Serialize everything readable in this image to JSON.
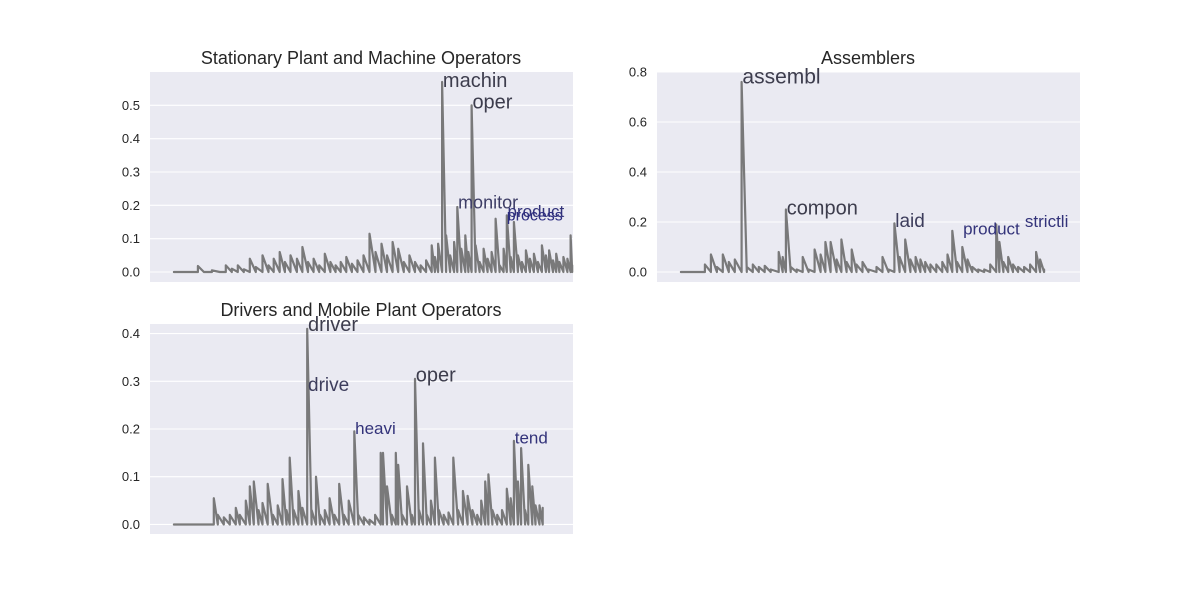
{
  "chart_data": [
    {
      "type": "line",
      "title": "Stationary Plant and Machine Operators",
      "xlabel": "",
      "ylabel": "",
      "ylim": [
        -0.03,
        0.6
      ],
      "yticks": [
        0.0,
        0.1,
        0.2,
        0.3,
        0.4,
        0.5
      ],
      "ytick_labels": [
        "0.0",
        "0.1",
        "0.2",
        "0.3",
        "0.4",
        "0.5"
      ],
      "xlim": [
        -60,
        1000
      ],
      "grid": true,
      "series": [
        {
          "color": "#737373",
          "values": [
            [
              0,
              0
            ],
            [
              40,
              0
            ],
            [
              60,
              0.018
            ],
            [
              75,
              0
            ],
            [
              95,
              0.005
            ],
            [
              115,
              0
            ],
            [
              130,
              0.02
            ],
            [
              145,
              0.01
            ],
            [
              160,
              0.02
            ],
            [
              175,
              0.008
            ],
            [
              190,
              0.04
            ],
            [
              205,
              0.015
            ],
            [
              222,
              0.05
            ],
            [
              237,
              0.02
            ],
            [
              250,
              0.04
            ],
            [
              265,
              0.06
            ],
            [
              278,
              0.03
            ],
            [
              292,
              0.05
            ],
            [
              308,
              0.04
            ],
            [
              322,
              0.075
            ],
            [
              336,
              0.03
            ],
            [
              350,
              0.04
            ],
            [
              364,
              0.02
            ],
            [
              378,
              0.055
            ],
            [
              392,
              0.03
            ],
            [
              405,
              0.02
            ],
            [
              418,
              0.03
            ],
            [
              432,
              0.045
            ],
            [
              446,
              0.025
            ],
            [
              460,
              0.035
            ],
            [
              475,
              0.05
            ],
            [
              490,
              0.115
            ],
            [
              505,
              0.06
            ],
            [
              520,
              0.085
            ],
            [
              534,
              0.05
            ],
            [
              548,
              0.09
            ],
            [
              562,
              0.07
            ],
            [
              576,
              0.03
            ],
            [
              590,
              0.05
            ],
            [
              604,
              0.03
            ],
            [
              618,
              0.02
            ],
            [
              632,
              0.035
            ],
            [
              646,
              0.08
            ],
            [
              654,
              0.045
            ],
            [
              662,
              0.085
            ],
            [
              672,
              0.57
            ],
            [
              682,
              0.11
            ],
            [
              692,
              0.05
            ],
            [
              702,
              0.09
            ],
            [
              710,
              0.195
            ],
            [
              720,
              0.07
            ],
            [
              730,
              0.11
            ],
            [
              738,
              0.06
            ],
            [
              746,
              0.5
            ],
            [
              756,
              0.08
            ],
            [
              766,
              0.03
            ],
            [
              776,
              0.07
            ],
            [
              786,
              0.04
            ],
            [
              796,
              0.06
            ],
            [
              806,
              0.16
            ],
            [
              816,
              0.02
            ],
            [
              826,
              0.07
            ],
            [
              834,
              0.17
            ],
            [
              844,
              0.045
            ],
            [
              852,
              0.15
            ],
            [
              862,
              0.05
            ],
            [
              872,
              0.03
            ],
            [
              882,
              0.065
            ],
            [
              892,
              0.04
            ],
            [
              902,
              0.055
            ],
            [
              912,
              0.03
            ],
            [
              922,
              0.08
            ],
            [
              932,
              0.05
            ],
            [
              940,
              0.065
            ],
            [
              950,
              0.035
            ],
            [
              958,
              0.055
            ],
            [
              966,
              0.03
            ],
            [
              976,
              0.045
            ],
            [
              986,
              0.04
            ],
            [
              994,
              0.11
            ],
            [
              998,
              0.02
            ]
          ]
        }
      ],
      "annotations": [
        {
          "text": "machin",
          "x": 674,
          "y": 0.555,
          "size": 20,
          "color": "#3d3d4d"
        },
        {
          "text": "oper",
          "x": 748,
          "y": 0.49,
          "size": 20,
          "color": "#3d3d4d"
        },
        {
          "text": "monitor",
          "x": 712,
          "y": 0.19,
          "size": 18,
          "color": "#3d3d66"
        },
        {
          "text": "product",
          "x": 836,
          "y": 0.165,
          "size": 17,
          "color": "#33337a"
        },
        {
          "text": "process",
          "x": 834,
          "y": 0.155,
          "size": 16,
          "color": "#2d2d80"
        }
      ]
    },
    {
      "type": "line",
      "title": "Assemblers",
      "xlabel": "",
      "ylabel": "",
      "ylim": [
        -0.04,
        0.8
      ],
      "yticks": [
        0.0,
        0.2,
        0.4,
        0.6,
        0.8
      ],
      "ytick_labels": [
        "0.0",
        "0.2",
        "0.4",
        "0.6",
        "0.8"
      ],
      "xlim": [
        -60,
        1000
      ],
      "grid": true,
      "series": [
        {
          "color": "#737373",
          "values": [
            [
              0,
              0
            ],
            [
              40,
              0
            ],
            [
              60,
              0.03
            ],
            [
              75,
              0.07
            ],
            [
              90,
              0.02
            ],
            [
              105,
              0.07
            ],
            [
              120,
              0.04
            ],
            [
              135,
              0.05
            ],
            [
              152,
              0.76
            ],
            [
              165,
              0.02
            ],
            [
              180,
              0.03
            ],
            [
              195,
              0.02
            ],
            [
              210,
              0.025
            ],
            [
              225,
              0.01
            ],
            [
              245,
              0.08
            ],
            [
              255,
              0.06
            ],
            [
              263,
              0.25
            ],
            [
              275,
              0.02
            ],
            [
              290,
              0.01
            ],
            [
              305,
              0.06
            ],
            [
              320,
              0.01
            ],
            [
              335,
              0.09
            ],
            [
              350,
              0.07
            ],
            [
              362,
              0.12
            ],
            [
              375,
              0.12
            ],
            [
              390,
              0.05
            ],
            [
              402,
              0.13
            ],
            [
              415,
              0.04
            ],
            [
              428,
              0.09
            ],
            [
              440,
              0.03
            ],
            [
              455,
              0.04
            ],
            [
              470,
              0.01
            ],
            [
              490,
              0.02
            ],
            [
              505,
              0.06
            ],
            [
              520,
              0.01
            ],
            [
              535,
              0.195
            ],
            [
              548,
              0.06
            ],
            [
              562,
              0.13
            ],
            [
              575,
              0.05
            ],
            [
              588,
              0.06
            ],
            [
              600,
              0.05
            ],
            [
              612,
              0.04
            ],
            [
              625,
              0.03
            ],
            [
              640,
              0.03
            ],
            [
              655,
              0.04
            ],
            [
              668,
              0.07
            ],
            [
              680,
              0.165
            ],
            [
              692,
              0.04
            ],
            [
              705,
              0.1
            ],
            [
              718,
              0.05
            ],
            [
              730,
              0.02
            ],
            [
              745,
              0.01
            ],
            [
              760,
              0.01
            ],
            [
              775,
              0.03
            ],
            [
              790,
              0.19
            ],
            [
              798,
              0.12
            ],
            [
              808,
              0.04
            ],
            [
              820,
              0.06
            ],
            [
              832,
              0.03
            ],
            [
              845,
              0.02
            ],
            [
              860,
              0.02
            ],
            [
              875,
              0.03
            ],
            [
              890,
              0.08
            ],
            [
              900,
              0.05
            ],
            [
              910,
              0.01
            ]
          ]
        }
      ],
      "annotations": [
        {
          "text": "assembl",
          "x": 154,
          "y": 0.755,
          "size": 21,
          "color": "#3d3d4d"
        },
        {
          "text": "compon",
          "x": 265,
          "y": 0.23,
          "size": 20,
          "color": "#3d3d4d"
        },
        {
          "text": "laid",
          "x": 537,
          "y": 0.18,
          "size": 19,
          "color": "#3d3d5c"
        },
        {
          "text": "product",
          "x": 707,
          "y": 0.15,
          "size": 17,
          "color": "#33337a"
        },
        {
          "text": "strictli",
          "x": 862,
          "y": 0.18,
          "size": 17,
          "color": "#33337a"
        }
      ]
    },
    {
      "type": "line",
      "title": "Drivers and Mobile Plant Operators",
      "xlabel": "",
      "ylabel": "",
      "ylim": [
        -0.02,
        0.42
      ],
      "yticks": [
        0.0,
        0.1,
        0.2,
        0.3,
        0.4
      ],
      "ytick_labels": [
        "0.0",
        "0.1",
        "0.2",
        "0.3",
        "0.4"
      ],
      "xlim": [
        -60,
        1000
      ],
      "grid": true,
      "series": [
        {
          "color": "#737373",
          "values": [
            [
              0,
              0
            ],
            [
              90,
              0
            ],
            [
              100,
              0.055
            ],
            [
              110,
              0.02
            ],
            [
              125,
              0.015
            ],
            [
              140,
              0.02
            ],
            [
              155,
              0.035
            ],
            [
              165,
              0.02
            ],
            [
              180,
              0.05
            ],
            [
              190,
              0.08
            ],
            [
              200,
              0.09
            ],
            [
              212,
              0.03
            ],
            [
              222,
              0.045
            ],
            [
              235,
              0.085
            ],
            [
              248,
              0.02
            ],
            [
              260,
              0.04
            ],
            [
              272,
              0.095
            ],
            [
              282,
              0.03
            ],
            [
              290,
              0.14
            ],
            [
              300,
              0.03
            ],
            [
              312,
              0.07
            ],
            [
              322,
              0.035
            ],
            [
              334,
              0.41
            ],
            [
              345,
              0.03
            ],
            [
              356,
              0.1
            ],
            [
              366,
              0.02
            ],
            [
              378,
              0.03
            ],
            [
              390,
              0.055
            ],
            [
              402,
              0.02
            ],
            [
              414,
              0.085
            ],
            [
              426,
              0.02
            ],
            [
              438,
              0.05
            ],
            [
              452,
              0.195
            ],
            [
              462,
              0.02
            ],
            [
              476,
              0.015
            ],
            [
              490,
              0.01
            ],
            [
              504,
              0.02
            ],
            [
              518,
              0.15
            ],
            [
              524,
              0.15
            ],
            [
              534,
              0.08
            ],
            [
              546,
              0.02
            ],
            [
              556,
              0.15
            ],
            [
              562,
              0.125
            ],
            [
              572,
              0.02
            ],
            [
              584,
              0.08
            ],
            [
              596,
              0.02
            ],
            [
              604,
              0.305
            ],
            [
              614,
              0.03
            ],
            [
              624,
              0.17
            ],
            [
              634,
              0.02
            ],
            [
              644,
              0.05
            ],
            [
              654,
              0.14
            ],
            [
              664,
              0.03
            ],
            [
              676,
              0.02
            ],
            [
              688,
              0.025
            ],
            [
              700,
              0.14
            ],
            [
              712,
              0.03
            ],
            [
              724,
              0.07
            ],
            [
              736,
              0.06
            ],
            [
              748,
              0.03
            ],
            [
              760,
              0.02
            ],
            [
              770,
              0.05
            ],
            [
              780,
              0.09
            ],
            [
              788,
              0.105
            ],
            [
              798,
              0.03
            ],
            [
              810,
              0.02
            ],
            [
              822,
              0.03
            ],
            [
              834,
              0.075
            ],
            [
              844,
              0.055
            ],
            [
              852,
              0.175
            ],
            [
              862,
              0.09
            ],
            [
              870,
              0.16
            ],
            [
              880,
              0.03
            ],
            [
              888,
              0.125
            ],
            [
              898,
              0.08
            ],
            [
              906,
              0.04
            ],
            [
              916,
              0.04
            ],
            [
              924,
              0.035
            ]
          ]
        }
      ],
      "annotations": [
        {
          "text": "driver",
          "x": 336,
          "y": 0.405,
          "size": 20,
          "color": "#3d3d4d"
        },
        {
          "text": "drive",
          "x": 336,
          "y": 0.28,
          "size": 19,
          "color": "#3d3d5c"
        },
        {
          "text": "oper",
          "x": 606,
          "y": 0.3,
          "size": 20,
          "color": "#3d3d4d"
        },
        {
          "text": "heavi",
          "x": 454,
          "y": 0.19,
          "size": 17,
          "color": "#33337a"
        },
        {
          "text": "tend",
          "x": 854,
          "y": 0.17,
          "size": 17,
          "color": "#33337a"
        }
      ]
    }
  ]
}
